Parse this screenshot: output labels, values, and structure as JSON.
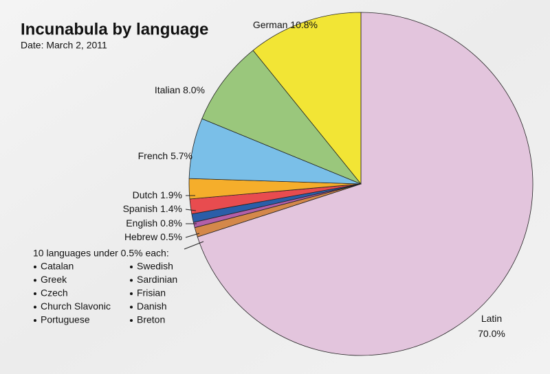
{
  "chart_data": {
    "type": "pie",
    "title": "Incunabula by language",
    "subtitle": "Date: March 2, 2011",
    "categories": [
      "Latin",
      "10 languages under 0.5% each:",
      "Hebrew",
      "English",
      "Spanish",
      "Dutch",
      "French",
      "Italian",
      "German"
    ],
    "values": [
      70.0,
      0.9,
      0.5,
      0.8,
      1.4,
      1.9,
      5.7,
      8.0,
      10.8
    ],
    "value_labels": [
      "70.0%",
      null,
      "0.5%",
      "0.8%",
      "1.4%",
      "1.9%",
      "5.7%",
      "8.0%",
      "10.8%"
    ],
    "colors": [
      "#e3c5dd",
      "#d4884a",
      "#b25fa8",
      "#2a5ea8",
      "#e84c4f",
      "#f5ae2b",
      "#7abfe8",
      "#9ac77c",
      "#f2e535"
    ],
    "other_languages": [
      "Catalan",
      "Greek",
      "Czech",
      "Church Slavonic",
      "Portuguese",
      "Swedish",
      "Sardinian",
      "Frisian",
      "Danish",
      "Breton"
    ]
  }
}
